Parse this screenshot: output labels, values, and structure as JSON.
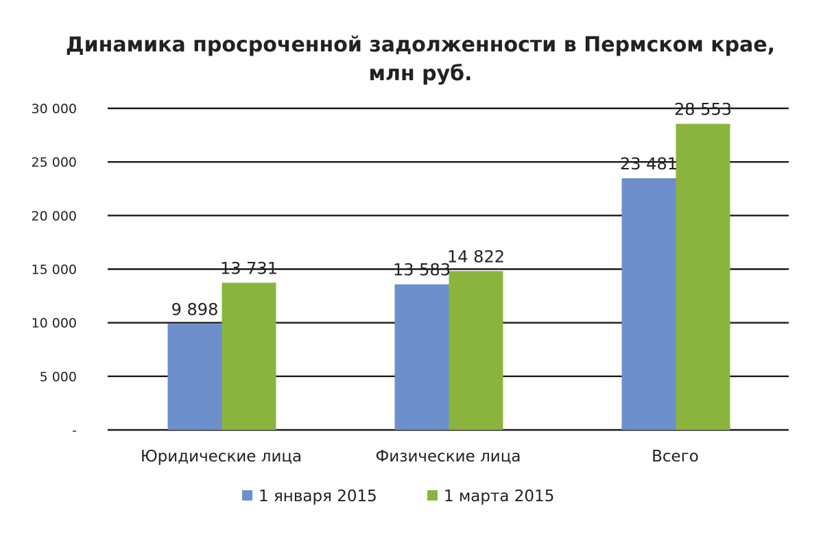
{
  "chart_data": {
    "type": "bar",
    "title_lines": [
      "Динамика просроченной задолженности в Пермском крае,",
      "млн руб."
    ],
    "categories": [
      "Юридические лица",
      "Физические лица",
      "Всего"
    ],
    "series": [
      {
        "name": "1 января 2015",
        "color": "#6d8fcb",
        "values": [
          9898,
          13583,
          23481
        ],
        "labels": [
          "9 898",
          "13 583",
          "23 481"
        ]
      },
      {
        "name": "1 марта 2015",
        "color": "#8bb43e",
        "values": [
          13731,
          14822,
          28553
        ],
        "labels": [
          "13 731",
          "14 822",
          "28 553"
        ]
      }
    ],
    "yticks": [
      {
        "value": 0,
        "label": "-"
      },
      {
        "value": 5000,
        "label": "5 000"
      },
      {
        "value": 10000,
        "label": "10 000"
      },
      {
        "value": 15000,
        "label": "15 000"
      },
      {
        "value": 20000,
        "label": "20 000"
      },
      {
        "value": 25000,
        "label": "25 000"
      },
      {
        "value": 30000,
        "label": "30 000"
      }
    ],
    "ylim": [
      0,
      30000
    ],
    "grid": true,
    "legend_position": "bottom"
  }
}
